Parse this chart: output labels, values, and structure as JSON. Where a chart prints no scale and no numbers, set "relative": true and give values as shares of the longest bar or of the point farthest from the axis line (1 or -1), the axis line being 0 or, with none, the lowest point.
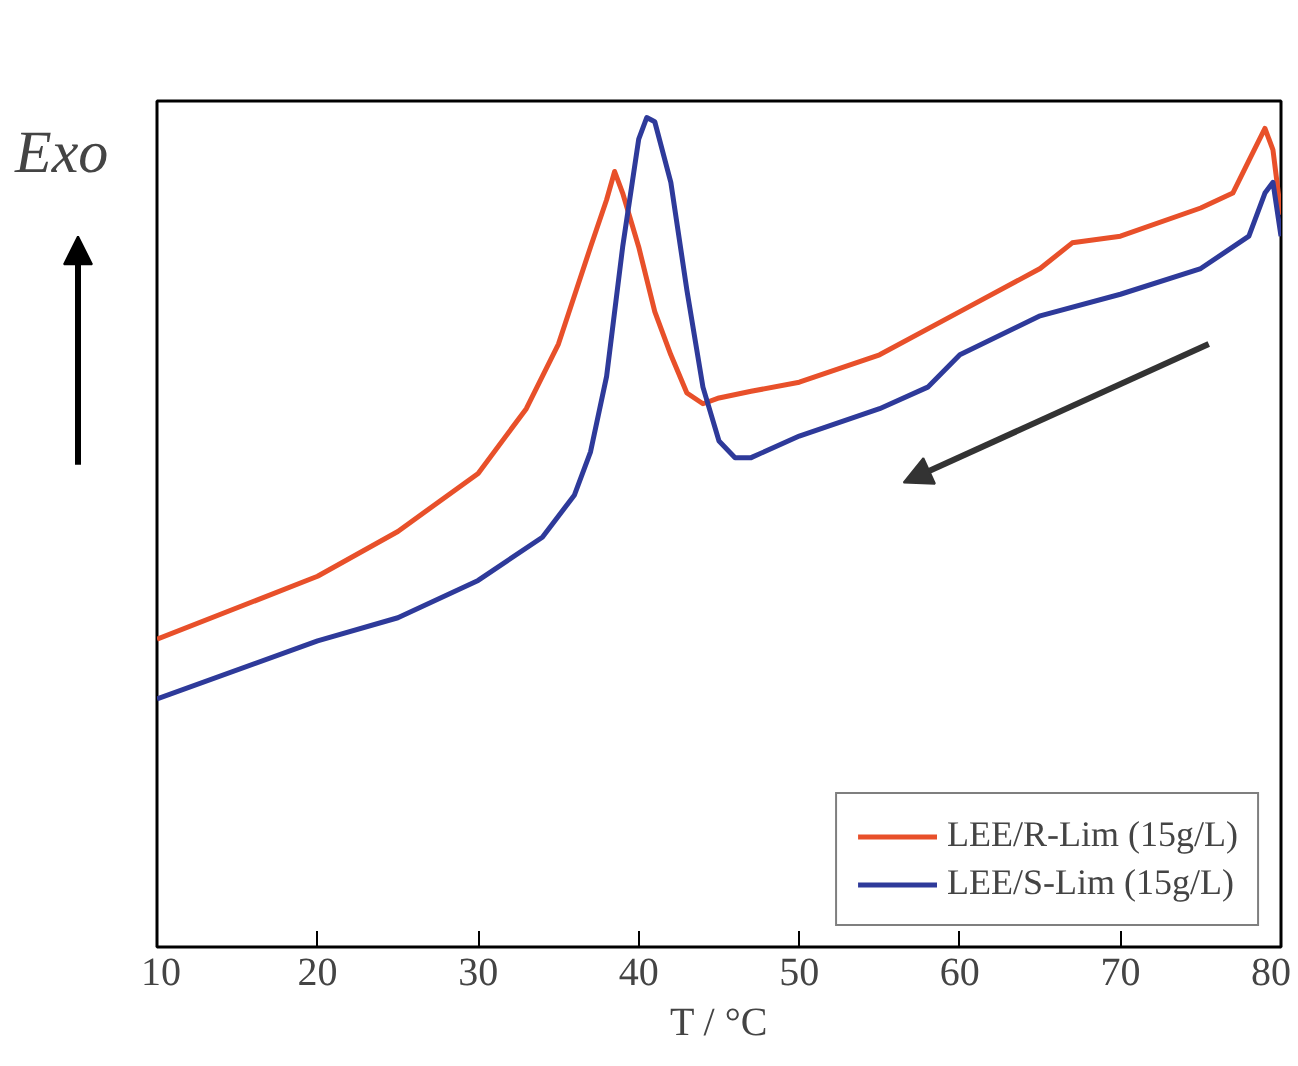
{
  "chart_data": {
    "type": "line",
    "relative": true,
    "xlabel": "T / °C",
    "xlim": [
      10,
      80
    ],
    "xticks": [
      10,
      20,
      30,
      40,
      50,
      60,
      70,
      80
    ],
    "grid": false,
    "legend": "bottom right",
    "line_style": "solid",
    "marker": "none",
    "annotations": [
      "Exo"
    ],
    "series": [
      {
        "name": "LEE/R-Lim (15g/L)",
        "color": "#e8502a",
        "x": [
          10,
          20,
          25,
          30,
          33,
          35,
          37,
          38,
          38.5,
          39,
          40,
          41,
          42,
          43,
          44,
          45,
          47,
          50,
          55,
          60,
          65,
          67,
          70,
          75,
          77,
          78,
          79,
          79.5,
          80
        ],
        "values": [
          0.371,
          0.447,
          0.501,
          0.571,
          0.649,
          0.727,
          0.844,
          0.901,
          0.935,
          0.909,
          0.844,
          0.766,
          0.714,
          0.668,
          0.655,
          0.662,
          0.67,
          0.681,
          0.714,
          0.766,
          0.818,
          0.849,
          0.857,
          0.891,
          0.909,
          0.948,
          0.987,
          0.961,
          0.883
        ]
      },
      {
        "name": "LEE/S-Lim (15g/L)",
        "color": "#2e3a9a",
        "x": [
          10,
          20,
          25,
          30,
          34,
          36,
          37,
          38,
          39,
          40,
          40.5,
          41,
          42,
          43,
          44,
          45,
          46,
          47,
          50,
          55,
          58,
          60,
          65,
          70,
          75,
          78,
          79,
          79.5,
          80
        ],
        "values": [
          0.299,
          0.369,
          0.397,
          0.442,
          0.494,
          0.545,
          0.597,
          0.688,
          0.844,
          0.974,
          1.0,
          0.995,
          0.922,
          0.792,
          0.675,
          0.61,
          0.59,
          0.59,
          0.616,
          0.649,
          0.675,
          0.714,
          0.761,
          0.787,
          0.818,
          0.857,
          0.909,
          0.922,
          0.857
        ]
      }
    ]
  }
}
